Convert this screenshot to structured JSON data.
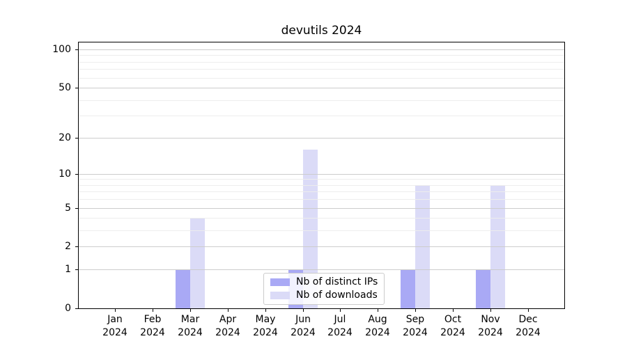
{
  "chart_data": {
    "type": "bar",
    "title": "devutils 2024",
    "categories": [
      "Jan",
      "Feb",
      "Mar",
      "Apr",
      "May",
      "Jun",
      "Jul",
      "Aug",
      "Sep",
      "Oct",
      "Nov",
      "Dec"
    ],
    "category_year": "2024",
    "series": [
      {
        "name": "Nb of distinct IPs",
        "color": "#a9a9f5",
        "values": [
          0,
          0,
          1,
          0,
          0,
          1,
          0,
          0,
          1,
          0,
          1,
          0
        ]
      },
      {
        "name": "Nb of downloads",
        "color": "#dbdbf7",
        "values": [
          0,
          0,
          4,
          0,
          0,
          16,
          0,
          0,
          8,
          0,
          8,
          0
        ]
      }
    ],
    "yscale": "log1p",
    "ylim": [
      0,
      113
    ],
    "y_major_ticks": [
      0,
      1,
      2,
      5,
      10,
      20,
      50,
      100
    ],
    "y_minor_ticks": [
      3,
      4,
      6,
      7,
      8,
      9,
      30,
      40,
      60,
      70,
      80,
      90
    ],
    "grid": true,
    "legend_position": "lower center",
    "colors": {
      "major_grid": "#cccccc",
      "minor_grid": "#ededed",
      "axis": "#000000",
      "text": "#000000",
      "legend_border": "#cccccc"
    }
  }
}
